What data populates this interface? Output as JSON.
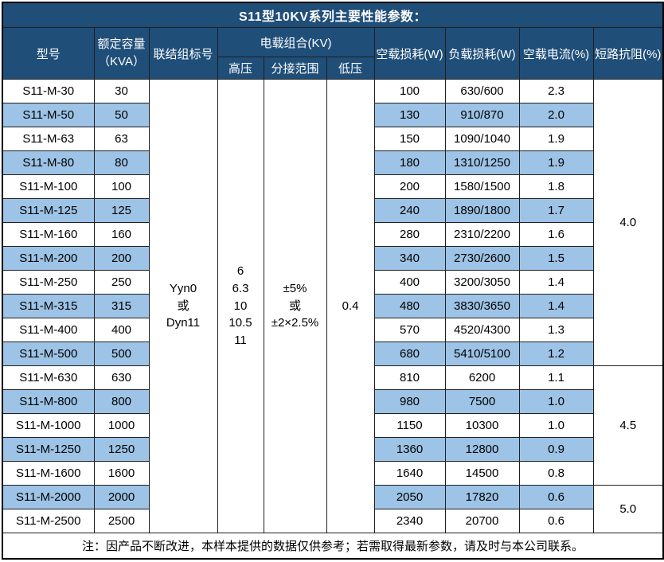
{
  "title": "S11型10KV系列主要性能参数：",
  "header": {
    "model": "型号",
    "capacity": "额定容量\n（KVA）",
    "connection": "联结组标号",
    "voltage_group": "电载组合(KV)",
    "hv": "高压",
    "tap": "分接范围",
    "lv": "低压",
    "no_load_loss": "空载损耗(W)",
    "load_loss": "负载损耗(W)",
    "no_load_current": "空载电流(%)",
    "impedance": "短路抗阻(%)"
  },
  "merged": {
    "connection": "Yyn0\n或\nDyn11",
    "hv": "6\n6.3\n10\n10.5\n11",
    "tap": "±5%\n或\n±2×2.5%",
    "lv": "0.4"
  },
  "impedance_groups": [
    {
      "value": "4.0",
      "span": 12
    },
    {
      "value": "4.5",
      "span": 5
    },
    {
      "value": "5.0",
      "span": 2
    }
  ],
  "rows": [
    {
      "model": "S11-M-30",
      "capacity": "30",
      "no_load_loss": "100",
      "load_loss": "630/600",
      "no_load_current": "2.3"
    },
    {
      "model": "S11-M-50",
      "capacity": "50",
      "no_load_loss": "130",
      "load_loss": "910/870",
      "no_load_current": "2.0"
    },
    {
      "model": "S11-M-63",
      "capacity": "63",
      "no_load_loss": "150",
      "load_loss": "1090/1040",
      "no_load_current": "1.9"
    },
    {
      "model": "S11-M-80",
      "capacity": "80",
      "no_load_loss": "180",
      "load_loss": "1310/1250",
      "no_load_current": "1.9"
    },
    {
      "model": "S11-M-100",
      "capacity": "100",
      "no_load_loss": "200",
      "load_loss": "1580/1500",
      "no_load_current": "1.8"
    },
    {
      "model": "S11-M-125",
      "capacity": "125",
      "no_load_loss": "240",
      "load_loss": "1890/1800",
      "no_load_current": "1.7"
    },
    {
      "model": "S11-M-160",
      "capacity": "160",
      "no_load_loss": "280",
      "load_loss": "2310/2200",
      "no_load_current": "1.6"
    },
    {
      "model": "S11-M-200",
      "capacity": "200",
      "no_load_loss": "340",
      "load_loss": "2730/2600",
      "no_load_current": "1.5"
    },
    {
      "model": "S11-M-250",
      "capacity": "250",
      "no_load_loss": "400",
      "load_loss": "3200/3050",
      "no_load_current": "1.4"
    },
    {
      "model": "S11-M-315",
      "capacity": "315",
      "no_load_loss": "480",
      "load_loss": "3830/3650",
      "no_load_current": "1.4"
    },
    {
      "model": "S11-M-400",
      "capacity": "400",
      "no_load_loss": "570",
      "load_loss": "4520/4300",
      "no_load_current": "1.3"
    },
    {
      "model": "S11-M-500",
      "capacity": "500",
      "no_load_loss": "680",
      "load_loss": "5410/5100",
      "no_load_current": "1.2"
    },
    {
      "model": "S11-M-630",
      "capacity": "630",
      "no_load_loss": "810",
      "load_loss": "6200",
      "no_load_current": "1.1"
    },
    {
      "model": "S11-M-800",
      "capacity": "800",
      "no_load_loss": "980",
      "load_loss": "7500",
      "no_load_current": "1.0"
    },
    {
      "model": "S11-M-1000",
      "capacity": "1000",
      "no_load_loss": "1150",
      "load_loss": "10300",
      "no_load_current": "1.0"
    },
    {
      "model": "S11-M-1250",
      "capacity": "1250",
      "no_load_loss": "1360",
      "load_loss": "12800",
      "no_load_current": "0.9"
    },
    {
      "model": "S11-M-1600",
      "capacity": "1600",
      "no_load_loss": "1640",
      "load_loss": "14500",
      "no_load_current": "0.8"
    },
    {
      "model": "S11-M-2000",
      "capacity": "2000",
      "no_load_loss": "2050",
      "load_loss": "17820",
      "no_load_current": "0.6"
    },
    {
      "model": "S11-M-2500",
      "capacity": "2500",
      "no_load_loss": "2340",
      "load_loss": "20700",
      "no_load_current": "0.6"
    }
  ],
  "note": "注：因产品不断改进，本样本提供的数据仅供参考；若需取得最新参数，请及时与本公司联系。",
  "colors": {
    "title_bg": "#1F4E79",
    "header_bg": "#1F4E79",
    "header_text": "#FFFFFF",
    "row_highlight": "#9DC3E6",
    "border": "#1F1F1F"
  }
}
